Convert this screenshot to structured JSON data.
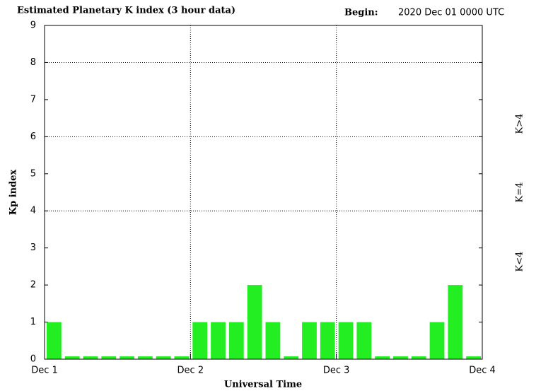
{
  "chart_data": {
    "type": "bar",
    "title": "Estimated Planetary K index (3 hour data)",
    "begin_label": "Begin:",
    "begin_value": "2020 Dec 01 0000 UTC",
    "ylabel": "Kp index",
    "xlabel": "Universal Time",
    "values": [
      1,
      0,
      0,
      0,
      0,
      0,
      0,
      0,
      1,
      1,
      1,
      2,
      1,
      0,
      1,
      1,
      1,
      1,
      0,
      0,
      0,
      1,
      2,
      0
    ],
    "color": "#22ee22",
    "ylim": [
      0,
      9
    ],
    "yticks": [
      0,
      1,
      2,
      3,
      4,
      5,
      6,
      7,
      8,
      9
    ],
    "xlim": [
      0,
      3
    ],
    "xticks": [
      {
        "value": 0,
        "label": "Dec 1"
      },
      {
        "value": 1,
        "label": "Dec 2"
      },
      {
        "value": 2,
        "label": "Dec 3"
      },
      {
        "value": 3,
        "label": "Dec 4"
      }
    ],
    "grid": true,
    "legend": [
      {
        "label": "K<4",
        "color": "#22ee22"
      },
      {
        "label": "K=4",
        "color": "#ffdd00"
      },
      {
        "label": "K>4",
        "color": "#ff2a00"
      }
    ]
  }
}
